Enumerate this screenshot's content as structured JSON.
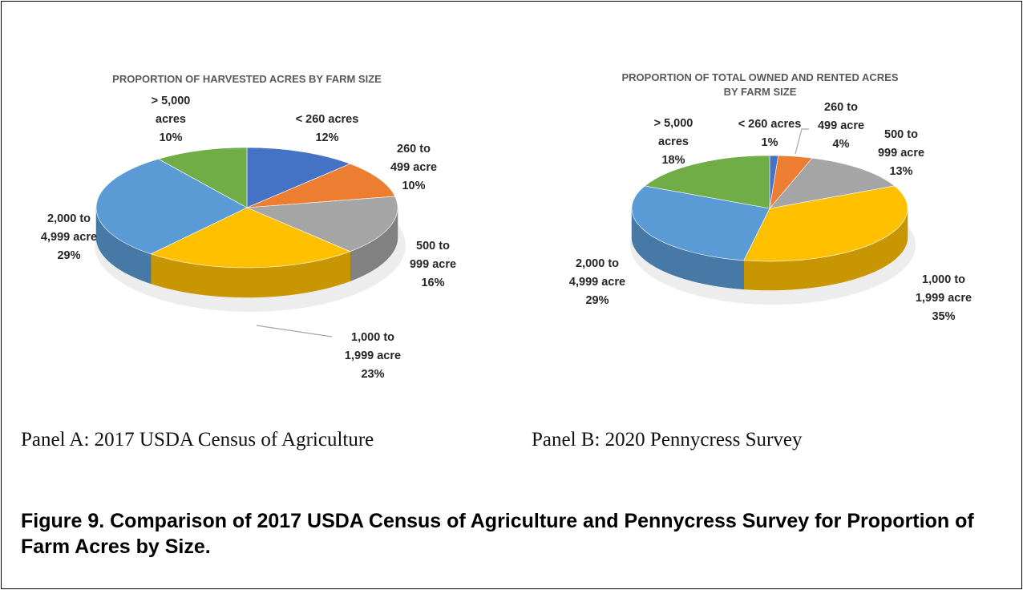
{
  "colors": {
    "blue_dark": "#4472C4",
    "orange": "#ED7D31",
    "gray": "#A5A5A5",
    "yellow": "#FFC000",
    "blue_light": "#5B9BD5",
    "green": "#70AD47"
  },
  "chart_data": [
    {
      "type": "pie",
      "title": "PROPORTION OF HARVESTED ACRES BY FARM SIZE",
      "slices": [
        {
          "label": "< 260 acres",
          "value": 12,
          "display": "12%",
          "color": "#4472C4"
        },
        {
          "label": "260 to 499 acre",
          "value": 10,
          "display": "10%",
          "color": "#ED7D31"
        },
        {
          "label": "500 to 999 acre",
          "value": 16,
          "display": "16%",
          "color": "#A5A5A5"
        },
        {
          "label": "1,000 to 1,999 acre",
          "value": 23,
          "display": "23%",
          "color": "#FFC000"
        },
        {
          "label": "2,000 to 4,999 acre",
          "value": 29,
          "display": "29%",
          "color": "#5B9BD5"
        },
        {
          "label": "> 5,000 acres",
          "value": 10,
          "display": "10%",
          "color": "#70AD47"
        }
      ]
    },
    {
      "type": "pie",
      "title": "PROPORTION OF TOTAL OWNED AND RENTED ACRES BY FARM SIZE",
      "slices": [
        {
          "label": "< 260 acres",
          "value": 1,
          "display": "1%",
          "color": "#4472C4"
        },
        {
          "label": "260 to 499 acre",
          "value": 4,
          "display": "4%",
          "color": "#ED7D31"
        },
        {
          "label": "500 to 999 acre",
          "value": 13,
          "display": "13%",
          "color": "#A5A5A5"
        },
        {
          "label": "1,000 to 1,999 acre",
          "value": 35,
          "display": "35%",
          "color": "#FFC000"
        },
        {
          "label": "2,000 to 4,999 acre",
          "value": 29,
          "display": "29%",
          "color": "#5B9BD5"
        },
        {
          "label": "> 5,000 acres",
          "value": 18,
          "display": "18%",
          "color": "#70AD47"
        }
      ]
    }
  ],
  "panels": {
    "a_caption": "Panel A: 2017 USDA Census of Agriculture",
    "b_caption": "Panel B: 2020 Pennycress Survey"
  },
  "figure_caption": "Figure 9. Comparison of 2017 USDA Census of Agriculture and Pennycress Survey for Proportion of Farm Acres by Size."
}
